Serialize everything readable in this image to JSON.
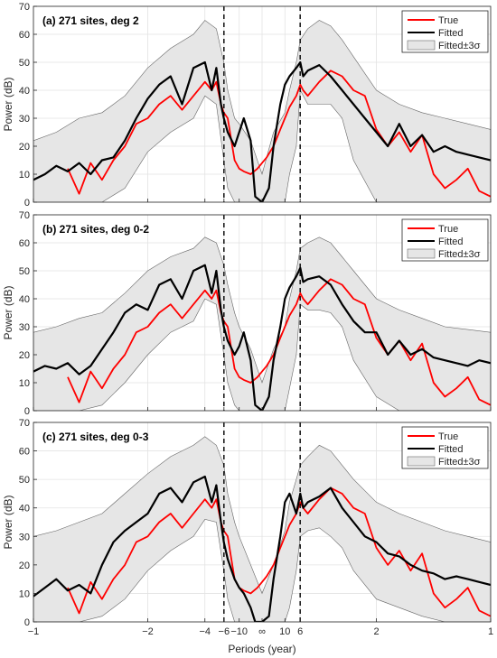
{
  "chart_data": [
    {
      "type": "line",
      "title": "(a) 271 sites, deg 2",
      "xlabel": "Periods (year)",
      "ylabel": "Power (dB)",
      "ylim": [
        0,
        70
      ],
      "yticks": [
        0,
        10,
        20,
        30,
        40,
        50,
        60,
        70
      ],
      "xlim": [
        -1,
        1
      ],
      "xticks": [
        -1,
        -0.5,
        -0.25,
        -0.1667,
        -0.1,
        0,
        0.1,
        0.1667,
        0.5,
        1
      ],
      "xticklabels": [
        "-1",
        "-2",
        "-4",
        "-6",
        "-10",
        "∞",
        "10",
        "6",
        "2",
        "1"
      ],
      "x_unit": "frequency (1/year), axis labeled by period",
      "vlines_dashed": [
        -0.1667,
        0.1667
      ],
      "grid": true,
      "legend_position": "top-right",
      "colors": {
        "True": "#ff0000",
        "Fitted": "#000000",
        "band_fill": "#e6e6e6",
        "band_edge": "#666666"
      },
      "series": [
        {
          "name": "True",
          "x": [
            -0.85,
            -0.8,
            -0.75,
            -0.7,
            -0.65,
            -0.6,
            -0.55,
            -0.5,
            -0.45,
            -0.4,
            -0.35,
            -0.3,
            -0.25,
            -0.22,
            -0.2,
            -0.18,
            -0.167,
            -0.15,
            -0.12,
            -0.1,
            -0.08,
            -0.05,
            -0.02,
            0,
            0.02,
            0.05,
            0.08,
            0.1,
            0.12,
            0.15,
            0.167,
            0.18,
            0.2,
            0.25,
            0.3,
            0.35,
            0.4,
            0.45,
            0.5,
            0.55,
            0.6,
            0.65,
            0.7,
            0.75,
            0.8,
            0.85,
            0.9,
            0.95,
            1
          ],
          "y": [
            12,
            3,
            14,
            8,
            15,
            20,
            28,
            30,
            35,
            38,
            33,
            38,
            43,
            40,
            43,
            35,
            32,
            30,
            15,
            12,
            11,
            10,
            12,
            14,
            16,
            20,
            26,
            30,
            34,
            38,
            42,
            40,
            38,
            43,
            47,
            45,
            40,
            38,
            26,
            20,
            25,
            18,
            24,
            10,
            5,
            8,
            12,
            4,
            2
          ]
        },
        {
          "name": "Fitted",
          "x": [
            -1,
            -0.95,
            -0.9,
            -0.85,
            -0.8,
            -0.75,
            -0.7,
            -0.65,
            -0.6,
            -0.55,
            -0.5,
            -0.45,
            -0.4,
            -0.35,
            -0.3,
            -0.25,
            -0.22,
            -0.2,
            -0.18,
            -0.167,
            -0.15,
            -0.12,
            -0.1,
            -0.08,
            -0.05,
            -0.03,
            0,
            0.03,
            0.05,
            0.08,
            0.1,
            0.12,
            0.15,
            0.167,
            0.18,
            0.2,
            0.25,
            0.3,
            0.35,
            0.4,
            0.45,
            0.5,
            0.55,
            0.6,
            0.65,
            0.7,
            0.75,
            0.8,
            0.85,
            0.9,
            0.95,
            1
          ],
          "y": [
            8,
            10,
            13,
            11,
            14,
            10,
            15,
            16,
            22,
            30,
            37,
            42,
            45,
            35,
            48,
            50,
            40,
            48,
            35,
            30,
            25,
            20,
            25,
            30,
            22,
            2,
            0,
            5,
            20,
            35,
            42,
            45,
            48,
            50,
            45,
            47,
            49,
            45,
            40,
            35,
            30,
            25,
            20,
            28,
            20,
            24,
            18,
            20,
            18,
            17,
            16,
            15
          ]
        },
        {
          "name": "Fitted±3σ",
          "type": "band",
          "x": [
            -1,
            -0.9,
            -0.8,
            -0.7,
            -0.6,
            -0.5,
            -0.4,
            -0.3,
            -0.25,
            -0.2,
            -0.167,
            -0.15,
            -0.12,
            -0.1,
            -0.05,
            0,
            0.05,
            0.1,
            0.12,
            0.15,
            0.167,
            0.2,
            0.25,
            0.3,
            0.35,
            0.4,
            0.5,
            0.6,
            0.7,
            0.8,
            0.9,
            1
          ],
          "lower": [
            0,
            0,
            0,
            0,
            5,
            18,
            25,
            30,
            38,
            35,
            15,
            5,
            0,
            0,
            0,
            0,
            0,
            0,
            10,
            20,
            40,
            35,
            35,
            35,
            30,
            15,
            0,
            0,
            0,
            0,
            0,
            0
          ],
          "upper": [
            22,
            25,
            30,
            32,
            38,
            48,
            55,
            60,
            65,
            62,
            50,
            40,
            30,
            28,
            22,
            10,
            25,
            32,
            40,
            50,
            58,
            62,
            65,
            63,
            58,
            52,
            40,
            35,
            32,
            30,
            28,
            26
          ]
        }
      ]
    },
    {
      "type": "line",
      "title": "(b) 271 sites, deg 0-2",
      "xlabel": "Periods (year)",
      "ylabel": "Power (dB)",
      "ylim": [
        0,
        70
      ],
      "yticks": [
        0,
        10,
        20,
        30,
        40,
        50,
        60,
        70
      ],
      "xlim": [
        -1,
        1
      ],
      "xticks": [
        -1,
        -0.5,
        -0.25,
        -0.1667,
        -0.1,
        0,
        0.1,
        0.1667,
        0.5,
        1
      ],
      "xticklabels": [
        "-1",
        "-2",
        "-4",
        "-6",
        "-10",
        "∞",
        "10",
        "6",
        "2",
        "1"
      ],
      "vlines_dashed": [
        -0.1667,
        0.1667
      ],
      "grid": true,
      "legend_position": "top-right",
      "colors": {
        "True": "#ff0000",
        "Fitted": "#000000",
        "band_fill": "#e6e6e6",
        "band_edge": "#666666"
      },
      "series": [
        {
          "name": "True",
          "x": [
            -0.85,
            -0.8,
            -0.75,
            -0.7,
            -0.65,
            -0.6,
            -0.55,
            -0.5,
            -0.45,
            -0.4,
            -0.35,
            -0.3,
            -0.25,
            -0.22,
            -0.2,
            -0.18,
            -0.167,
            -0.15,
            -0.12,
            -0.1,
            -0.08,
            -0.05,
            -0.02,
            0,
            0.02,
            0.05,
            0.08,
            0.1,
            0.12,
            0.15,
            0.167,
            0.18,
            0.2,
            0.25,
            0.3,
            0.35,
            0.4,
            0.45,
            0.5,
            0.55,
            0.6,
            0.65,
            0.7,
            0.75,
            0.8,
            0.85,
            0.9,
            0.95,
            1
          ],
          "y": [
            12,
            3,
            14,
            8,
            15,
            20,
            28,
            30,
            35,
            38,
            33,
            38,
            43,
            40,
            43,
            35,
            32,
            30,
            15,
            12,
            11,
            10,
            12,
            14,
            16,
            20,
            26,
            30,
            34,
            38,
            42,
            40,
            38,
            43,
            47,
            45,
            40,
            38,
            26,
            20,
            25,
            18,
            24,
            10,
            5,
            8,
            12,
            4,
            2
          ]
        },
        {
          "name": "Fitted",
          "x": [
            -1,
            -0.95,
            -0.9,
            -0.85,
            -0.8,
            -0.75,
            -0.7,
            -0.65,
            -0.6,
            -0.55,
            -0.5,
            -0.45,
            -0.4,
            -0.35,
            -0.3,
            -0.25,
            -0.22,
            -0.2,
            -0.18,
            -0.167,
            -0.15,
            -0.12,
            -0.1,
            -0.08,
            -0.05,
            -0.03,
            0,
            0.03,
            0.05,
            0.08,
            0.1,
            0.12,
            0.15,
            0.167,
            0.18,
            0.2,
            0.25,
            0.3,
            0.35,
            0.4,
            0.45,
            0.5,
            0.55,
            0.6,
            0.65,
            0.7,
            0.75,
            0.8,
            0.85,
            0.9,
            0.95,
            1
          ],
          "y": [
            14,
            16,
            15,
            17,
            13,
            16,
            22,
            28,
            35,
            38,
            36,
            45,
            47,
            40,
            50,
            52,
            42,
            50,
            36,
            30,
            25,
            20,
            23,
            28,
            18,
            2,
            0,
            5,
            18,
            30,
            40,
            44,
            48,
            51,
            46,
            47,
            48,
            45,
            38,
            32,
            28,
            28,
            20,
            25,
            20,
            22,
            19,
            18,
            17,
            16,
            18,
            17
          ]
        },
        {
          "name": "Fitted±3σ",
          "type": "band",
          "x": [
            -1,
            -0.9,
            -0.8,
            -0.7,
            -0.6,
            -0.5,
            -0.4,
            -0.3,
            -0.25,
            -0.2,
            -0.167,
            -0.15,
            -0.12,
            -0.1,
            -0.05,
            0,
            0.05,
            0.1,
            0.12,
            0.15,
            0.167,
            0.2,
            0.25,
            0.3,
            0.35,
            0.4,
            0.5,
            0.6,
            0.7,
            0.8,
            0.9,
            1
          ],
          "lower": [
            0,
            0,
            0,
            2,
            10,
            20,
            28,
            32,
            40,
            38,
            20,
            10,
            2,
            0,
            0,
            0,
            0,
            0,
            8,
            20,
            38,
            36,
            36,
            35,
            30,
            18,
            5,
            0,
            0,
            0,
            0,
            0
          ],
          "upper": [
            28,
            30,
            33,
            35,
            42,
            50,
            55,
            58,
            62,
            60,
            52,
            45,
            35,
            30,
            22,
            10,
            22,
            30,
            40,
            50,
            58,
            60,
            62,
            60,
            55,
            50,
            40,
            36,
            33,
            30,
            29,
            28
          ]
        }
      ]
    },
    {
      "type": "line",
      "title": "(c) 271 sites, deg 0-3",
      "xlabel": "Periods (year)",
      "ylabel": "Power (dB)",
      "ylim": [
        0,
        70
      ],
      "yticks": [
        0,
        10,
        20,
        30,
        40,
        50,
        60,
        70
      ],
      "xlim": [
        -1,
        1
      ],
      "xticks": [
        -1,
        -0.5,
        -0.25,
        -0.1667,
        -0.1,
        0,
        0.1,
        0.1667,
        0.5,
        1
      ],
      "xticklabels": [
        "-1",
        "-2",
        "-4",
        "-6",
        "-10",
        "∞",
        "10",
        "6",
        "2",
        "1"
      ],
      "vlines_dashed": [
        -0.1667,
        0.1667
      ],
      "grid": true,
      "legend_position": "top-right",
      "colors": {
        "True": "#ff0000",
        "Fitted": "#000000",
        "band_fill": "#e6e6e6",
        "band_edge": "#666666"
      },
      "series": [
        {
          "name": "True",
          "x": [
            -0.85,
            -0.8,
            -0.75,
            -0.7,
            -0.65,
            -0.6,
            -0.55,
            -0.5,
            -0.45,
            -0.4,
            -0.35,
            -0.3,
            -0.25,
            -0.22,
            -0.2,
            -0.18,
            -0.167,
            -0.15,
            -0.12,
            -0.1,
            -0.08,
            -0.05,
            -0.02,
            0,
            0.02,
            0.05,
            0.08,
            0.1,
            0.12,
            0.15,
            0.167,
            0.18,
            0.2,
            0.25,
            0.3,
            0.35,
            0.4,
            0.45,
            0.5,
            0.55,
            0.6,
            0.65,
            0.7,
            0.75,
            0.8,
            0.85,
            0.9,
            0.95,
            1
          ],
          "y": [
            12,
            3,
            14,
            8,
            15,
            20,
            28,
            30,
            35,
            38,
            33,
            38,
            43,
            40,
            43,
            35,
            32,
            30,
            15,
            12,
            11,
            10,
            12,
            14,
            16,
            20,
            26,
            30,
            34,
            38,
            42,
            40,
            38,
            43,
            47,
            45,
            40,
            38,
            26,
            20,
            25,
            18,
            24,
            10,
            5,
            8,
            12,
            4,
            2
          ]
        },
        {
          "name": "Fitted",
          "x": [
            -1,
            -0.95,
            -0.9,
            -0.85,
            -0.8,
            -0.75,
            -0.7,
            -0.65,
            -0.6,
            -0.55,
            -0.5,
            -0.45,
            -0.4,
            -0.35,
            -0.3,
            -0.25,
            -0.22,
            -0.2,
            -0.18,
            -0.167,
            -0.15,
            -0.12,
            -0.1,
            -0.08,
            -0.05,
            -0.03,
            0,
            0.03,
            0.05,
            0.08,
            0.1,
            0.12,
            0.15,
            0.167,
            0.18,
            0.2,
            0.25,
            0.3,
            0.35,
            0.4,
            0.45,
            0.5,
            0.55,
            0.6,
            0.65,
            0.7,
            0.75,
            0.8,
            0.85,
            0.9,
            0.95,
            1
          ],
          "y": [
            9,
            12,
            15,
            11,
            13,
            10,
            20,
            28,
            32,
            35,
            38,
            45,
            47,
            42,
            49,
            51,
            42,
            48,
            35,
            28,
            22,
            15,
            12,
            10,
            5,
            0,
            0,
            2,
            15,
            30,
            42,
            45,
            38,
            45,
            40,
            42,
            44,
            47,
            40,
            35,
            30,
            28,
            24,
            23,
            20,
            18,
            17,
            15,
            16,
            15,
            14,
            13
          ]
        },
        {
          "name": "Fitted±3σ",
          "type": "band",
          "x": [
            -1,
            -0.9,
            -0.8,
            -0.7,
            -0.6,
            -0.5,
            -0.4,
            -0.3,
            -0.25,
            -0.2,
            -0.167,
            -0.15,
            -0.12,
            -0.1,
            -0.05,
            0,
            0.05,
            0.1,
            0.12,
            0.15,
            0.167,
            0.2,
            0.25,
            0.3,
            0.35,
            0.4,
            0.5,
            0.6,
            0.7,
            0.8,
            0.9,
            1
          ],
          "lower": [
            0,
            0,
            0,
            2,
            8,
            18,
            25,
            30,
            36,
            35,
            18,
            8,
            0,
            0,
            0,
            0,
            0,
            0,
            5,
            18,
            30,
            32,
            33,
            30,
            26,
            18,
            8,
            5,
            2,
            0,
            0,
            0
          ],
          "upper": [
            30,
            32,
            35,
            38,
            45,
            52,
            58,
            62,
            65,
            62,
            55,
            45,
            35,
            30,
            20,
            10,
            20,
            32,
            42,
            50,
            55,
            58,
            62,
            60,
            55,
            50,
            42,
            38,
            35,
            32,
            30,
            28
          ]
        }
      ]
    }
  ]
}
